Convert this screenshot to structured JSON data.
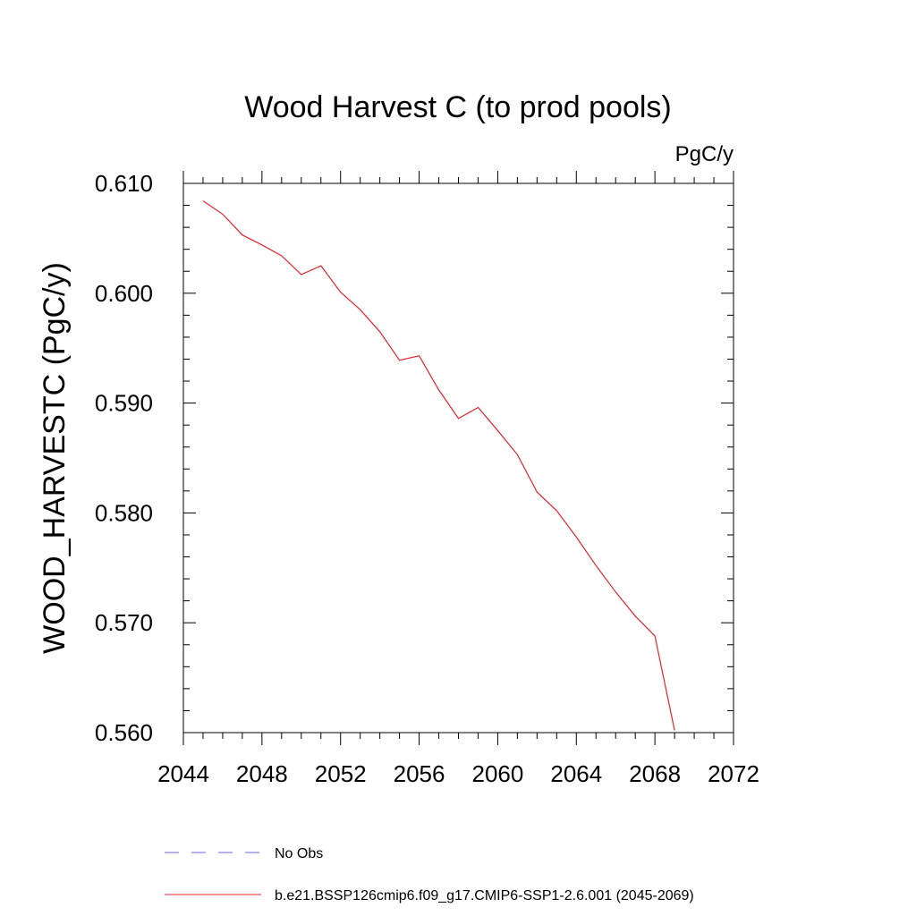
{
  "chart_data": {
    "type": "line",
    "title": "Wood Harvest C (to prod pools)",
    "units": "PgC/y",
    "ylabel": "WOOD_HARVESTC  (PgC/y)",
    "xlabel": "",
    "xlim": [
      2044,
      2072
    ],
    "ylim": [
      0.56,
      0.61
    ],
    "x_ticks": [
      2044,
      2048,
      2052,
      2056,
      2060,
      2064,
      2068,
      2072
    ],
    "x_tick_labels": [
      "2044",
      "2048",
      "2052",
      "2056",
      "2060",
      "2064",
      "2068",
      "2072"
    ],
    "y_ticks": [
      0.56,
      0.57,
      0.58,
      0.59,
      0.6,
      0.61
    ],
    "y_tick_labels": [
      "0.560",
      "0.570",
      "0.580",
      "0.590",
      "0.600",
      "0.610"
    ],
    "grid": false,
    "legend_position": "bottom",
    "series": [
      {
        "name": "b.e21.BSSP126cmip6.f09_g17.CMIP6-SSP1-2.6.001 (2045-2069)",
        "color": "#e8232a",
        "x": [
          2045,
          2046,
          2047,
          2048,
          2049,
          2050,
          2051,
          2052,
          2053,
          2054,
          2055,
          2056,
          2057,
          2058,
          2059,
          2060,
          2061,
          2062,
          2063,
          2064,
          2065,
          2066,
          2067,
          2068,
          2069
        ],
        "y": [
          0.6084,
          0.6072,
          0.6053,
          0.6044,
          0.6034,
          0.6017,
          0.6025,
          0.6001,
          0.5985,
          0.5965,
          0.5939,
          0.5943,
          0.5912,
          0.5886,
          0.5896,
          0.5875,
          0.5853,
          0.5819,
          0.5802,
          0.5778,
          0.5752,
          0.5728,
          0.5706,
          0.5688,
          0.5602
        ]
      }
    ],
    "legend": [
      {
        "label": "No Obs",
        "color": "#6b6bd6",
        "dash": true
      },
      {
        "label": "b.e21.BSSP126cmip6.f09_g17.CMIP6-SSP1-2.6.001 (2045-2069)",
        "color": "#e8232a",
        "dash": false
      }
    ]
  }
}
